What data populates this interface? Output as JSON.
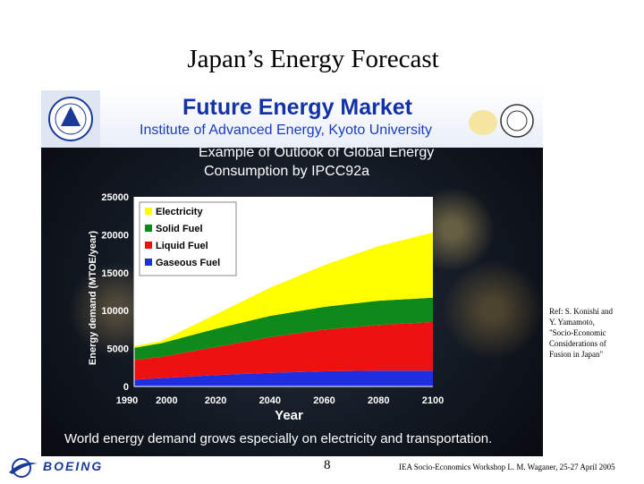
{
  "slide": {
    "title": "Japan’s Energy Forecast",
    "page_number": "8",
    "footer": "IEA Socio-Economics Workshop   L. M. Waganer, 25-27 April 2005",
    "boeing_label": "BOEING"
  },
  "panel": {
    "title": "Future Energy Market",
    "subtitle": "Institute of Advanced Energy, Kyoto University",
    "example_line1": "Example of Outlook of Global Energy",
    "example_line2": "Consumption by IPCC92a",
    "caption": "World energy demand grows especially on electricity and transportation."
  },
  "reference": {
    "line1": "Ref: S. Konishi and",
    "line2": "Y. Yamamoto,",
    "line3": "\"Socio-Economic",
    "line4": "Considerations of",
    "line5": "Fusion in Japan\""
  },
  "colors": {
    "electricity": "#ffff00",
    "solid_fuel": "#0d8a1a",
    "liquid_fuel": "#ee1111",
    "gaseous_fuel": "#1f2fe0"
  },
  "chart_data": {
    "type": "area",
    "stacked": true,
    "x": [
      1990,
      2000,
      2020,
      2040,
      2060,
      2080,
      2100
    ],
    "x_tick_labels": [
      "1990",
      "2000",
      "2020",
      "2040",
      "2060",
      "2080",
      "2100"
    ],
    "y_tick_labels": [
      "0",
      "5000",
      "10000",
      "15000",
      "20000",
      "25000"
    ],
    "xlabel": "Year",
    "ylabel": "Energy demand (MTOE/year)",
    "xlim": [
      1990,
      2100
    ],
    "ylim": [
      0,
      25000
    ],
    "legend_position": "top-left",
    "series": [
      {
        "name": "Gaseous Fuel",
        "color_key": "gaseous_fuel",
        "values": [
          900,
          1100,
          1500,
          1800,
          2000,
          2100,
          2100
        ]
      },
      {
        "name": "Liquid Fuel",
        "color_key": "liquid_fuel",
        "values": [
          2600,
          2800,
          3700,
          4700,
          5500,
          6000,
          6400
        ]
      },
      {
        "name": "Solid Fuel",
        "color_key": "solid_fuel",
        "values": [
          1600,
          1800,
          2400,
          2800,
          3000,
          3200,
          3200
        ]
      },
      {
        "name": "Electricity",
        "color_key": "electricity",
        "values": [
          200,
          300,
          1900,
          3700,
          5500,
          7200,
          8600
        ]
      }
    ],
    "legend_order": [
      "Electricity",
      "Solid Fuel",
      "Liquid Fuel",
      "Gaseous Fuel"
    ]
  }
}
